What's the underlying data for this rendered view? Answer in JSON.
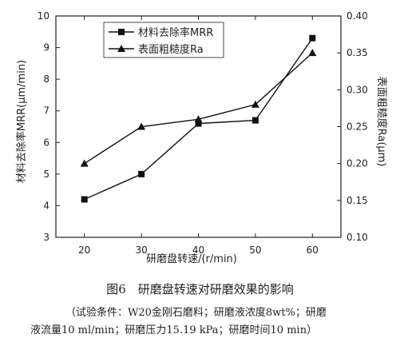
{
  "chart_data": {
    "type": "line",
    "xlabel": "研磨盘转速/(r/min)",
    "ylabel_left": "材料去除率MRR(μm/min)",
    "ylabel_right": "表面粗糙度Ra(μm)",
    "x": [
      20,
      30,
      40,
      50,
      60
    ],
    "xticks": [
      "20",
      "30",
      "40",
      "50",
      "60"
    ],
    "xlim": [
      15,
      65
    ],
    "ylim_left": [
      3,
      10
    ],
    "yticks_left": [
      "3",
      "4",
      "5",
      "6",
      "7",
      "8",
      "9",
      "10"
    ],
    "ylim_right": [
      0.1,
      0.4
    ],
    "yticks_right": [
      "0.10",
      "0.15",
      "0.20",
      "0.25",
      "0.30",
      "0.35",
      "0.40"
    ],
    "series": [
      {
        "name": "材料去除率MRR",
        "marker": "square",
        "axis": "left",
        "values": [
          4.2,
          5.0,
          6.6,
          6.7,
          9.3
        ]
      },
      {
        "name": "表面粗糙度Ra",
        "marker": "triangle",
        "axis": "right",
        "values": [
          0.2,
          0.25,
          0.26,
          0.28,
          0.35
        ]
      }
    ],
    "legend_position": "top-left",
    "grid": false
  },
  "caption": {
    "title": "图6　研磨盘转速对研磨效果的影响",
    "note_line1": "（试验条件：W20金刚石磨料；研磨液浓度8wt%；研磨",
    "note_line2": "液流量10 ml/min；研磨压力15.19 kPa；研磨时间10 min）"
  }
}
